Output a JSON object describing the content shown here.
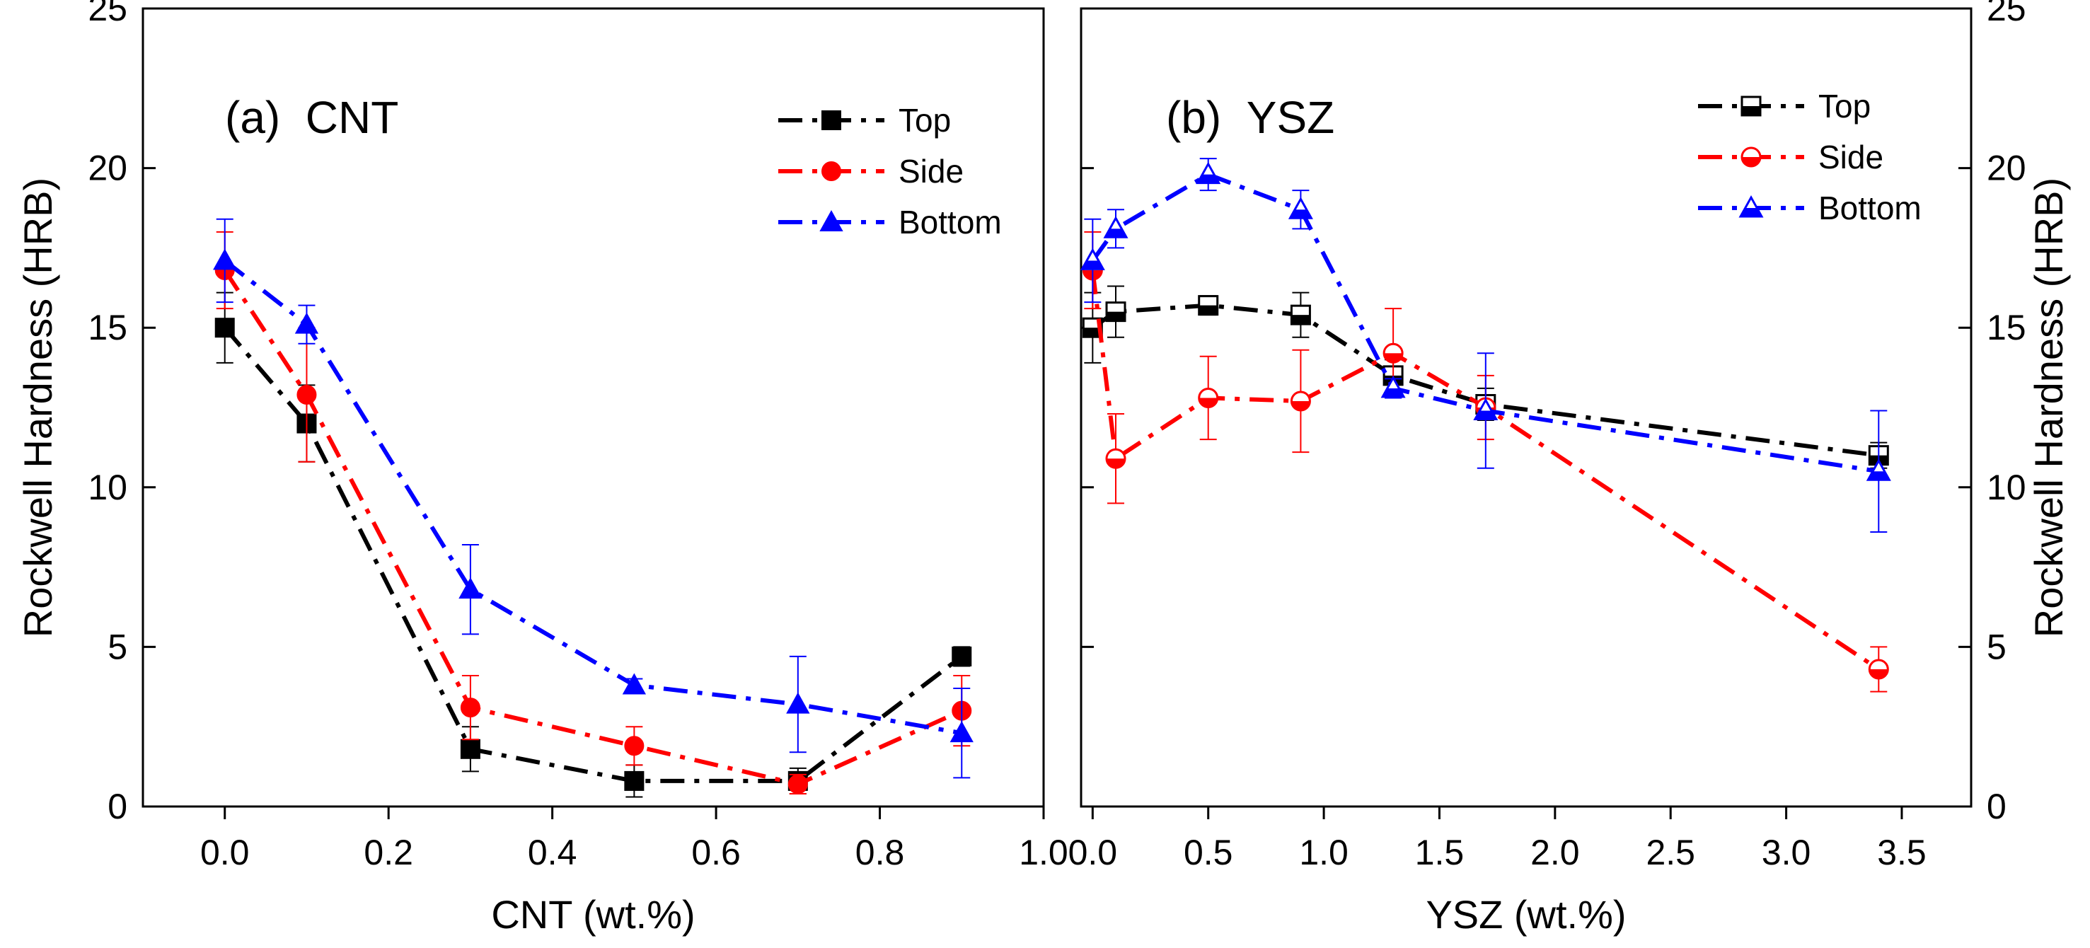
{
  "chart_data": [
    {
      "type": "line",
      "panel_label": "(a)  CNT",
      "xlabel": "CNT (wt.%)",
      "ylabel": "Rockwell Hardness (HRB)",
      "xlim": [
        -0.1,
        1.0
      ],
      "ylim": [
        0,
        25
      ],
      "xticks": [
        0.0,
        0.2,
        0.4,
        0.6,
        0.8,
        1.0
      ],
      "xtick_labels": [
        "0.0",
        "0.2",
        "0.4",
        "0.6",
        "0.8",
        "1.0"
      ],
      "yticks": [
        0,
        5,
        10,
        15,
        20,
        25
      ],
      "ytick_labels": [
        "0",
        "5",
        "10",
        "15",
        "20",
        "25"
      ],
      "ylabel_side": "left",
      "marker_fill": "filled",
      "legend_position": "top-right",
      "grid": false,
      "series": [
        {
          "name": "Top",
          "color": "#000000",
          "marker": "square",
          "dash": "dash-dot",
          "points": [
            {
              "x": 0.0,
              "y": 15.0,
              "err": 1.1
            },
            {
              "x": 0.1,
              "y": 12.0,
              "err": 1.2
            },
            {
              "x": 0.3,
              "y": 1.8,
              "err": 0.7
            },
            {
              "x": 0.5,
              "y": 0.8,
              "err": 0.5
            },
            {
              "x": 0.7,
              "y": 0.8,
              "err": 0.4
            },
            {
              "x": 0.9,
              "y": 4.7,
              "err": 0.3
            }
          ]
        },
        {
          "name": "Side",
          "color": "#ff0000",
          "marker": "circle",
          "dash": "dash-dot",
          "points": [
            {
              "x": 0.0,
              "y": 16.8,
              "err": 1.2
            },
            {
              "x": 0.1,
              "y": 12.9,
              "err": 2.1
            },
            {
              "x": 0.3,
              "y": 3.1,
              "err": 1.0
            },
            {
              "x": 0.5,
              "y": 1.9,
              "err": 0.6
            },
            {
              "x": 0.7,
              "y": 0.7,
              "err": 0.3
            },
            {
              "x": 0.9,
              "y": 3.0,
              "err": 1.1
            }
          ]
        },
        {
          "name": "Bottom",
          "color": "#0000ff",
          "marker": "triangle",
          "dash": "dash-dot",
          "points": [
            {
              "x": 0.0,
              "y": 17.1,
              "err": 1.3
            },
            {
              "x": 0.1,
              "y": 15.1,
              "err": 0.6
            },
            {
              "x": 0.3,
              "y": 6.8,
              "err": 1.4
            },
            {
              "x": 0.5,
              "y": 3.8,
              "err": 0.2
            },
            {
              "x": 0.7,
              "y": 3.2,
              "err": 1.5
            },
            {
              "x": 0.9,
              "y": 2.3,
              "err": 1.4
            }
          ]
        }
      ]
    },
    {
      "type": "line",
      "panel_label": "(b)  YSZ",
      "xlabel": "YSZ (wt.%)",
      "ylabel": "Rockwell Hardness (HRB)",
      "xlim": [
        -0.05,
        3.8
      ],
      "ylim": [
        0,
        25
      ],
      "xticks": [
        0.0,
        0.5,
        1.0,
        1.5,
        2.0,
        2.5,
        3.0,
        3.5
      ],
      "xtick_labels": [
        "0.0",
        "0.5",
        "1.0",
        "1.5",
        "2.0",
        "2.5",
        "3.0",
        "3.5"
      ],
      "yticks": [
        0,
        5,
        10,
        15,
        20,
        25
      ],
      "ytick_labels": [
        "0",
        "5",
        "10",
        "15",
        "20",
        "25"
      ],
      "ylabel_side": "right",
      "marker_fill": "half",
      "legend_position": "top-right",
      "grid": false,
      "series": [
        {
          "name": "Top",
          "color": "#000000",
          "marker": "square",
          "dash": "dash-dot",
          "points": [
            {
              "x": 0.0,
              "y": 15.0,
              "err": 1.1
            },
            {
              "x": 0.1,
              "y": 15.5,
              "err": 0.8
            },
            {
              "x": 0.5,
              "y": 15.7,
              "err": 0.3
            },
            {
              "x": 0.9,
              "y": 15.4,
              "err": 0.7
            },
            {
              "x": 1.3,
              "y": 13.5,
              "err": 0.5
            },
            {
              "x": 1.7,
              "y": 12.6,
              "err": 0.5
            },
            {
              "x": 3.4,
              "y": 11.0,
              "err": 0.4
            }
          ]
        },
        {
          "name": "Side",
          "color": "#ff0000",
          "marker": "circle",
          "dash": "dash-dot",
          "points": [
            {
              "x": 0.0,
              "y": 16.8,
              "err": 1.2
            },
            {
              "x": 0.1,
              "y": 10.9,
              "err": 1.4
            },
            {
              "x": 0.5,
              "y": 12.8,
              "err": 1.3
            },
            {
              "x": 0.9,
              "y": 12.7,
              "err": 1.6
            },
            {
              "x": 1.3,
              "y": 14.2,
              "err": 1.4
            },
            {
              "x": 1.7,
              "y": 12.5,
              "err": 1.0
            },
            {
              "x": 3.4,
              "y": 4.3,
              "err": 0.7
            }
          ]
        },
        {
          "name": "Bottom",
          "color": "#0000ff",
          "marker": "triangle",
          "dash": "dash-dot",
          "points": [
            {
              "x": 0.0,
              "y": 17.1,
              "err": 1.3
            },
            {
              "x": 0.1,
              "y": 18.1,
              "err": 0.6
            },
            {
              "x": 0.5,
              "y": 19.8,
              "err": 0.5
            },
            {
              "x": 0.9,
              "y": 18.7,
              "err": 0.6
            },
            {
              "x": 1.3,
              "y": 13.1,
              "err": 0.3
            },
            {
              "x": 1.7,
              "y": 12.4,
              "err": 1.8
            },
            {
              "x": 3.4,
              "y": 10.5,
              "err": 1.9
            }
          ]
        }
      ]
    }
  ]
}
